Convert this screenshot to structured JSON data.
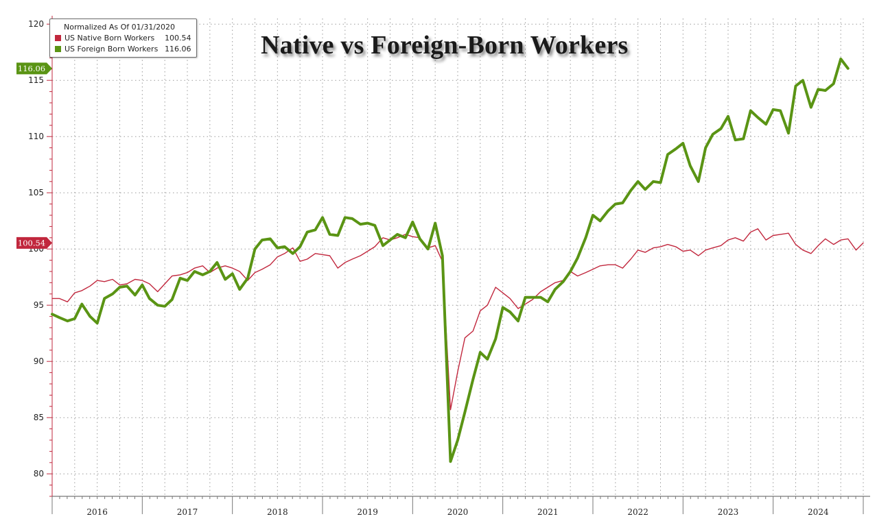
{
  "chart_data": {
    "type": "line",
    "title": "Native vs Foreign-Born Workers",
    "legend_header": "Normalized As Of 01/31/2020",
    "legend_position": "top-left",
    "ylim": [
      78,
      120.5
    ],
    "y_ticks": [
      80,
      85,
      90,
      95,
      100,
      105,
      110,
      115,
      120
    ],
    "xlim": [
      2016,
      2025
    ],
    "year_labels": [
      "2016",
      "2017",
      "2018",
      "2019",
      "2020",
      "2021",
      "2022",
      "2023",
      "2024"
    ],
    "grid": true,
    "series": [
      {
        "name": "US Native Born Workers",
        "color": "#c1273d",
        "last_value": 100.54,
        "last_label": "100.54",
        "width": 1.4,
        "points": [
          [
            2016.0,
            95.6
          ],
          [
            2016.08,
            95.6
          ],
          [
            2016.17,
            95.3
          ],
          [
            2016.25,
            96.1
          ],
          [
            2016.33,
            96.3
          ],
          [
            2016.42,
            96.7
          ],
          [
            2016.5,
            97.2
          ],
          [
            2016.58,
            97.1
          ],
          [
            2016.67,
            97.3
          ],
          [
            2016.75,
            96.8
          ],
          [
            2016.83,
            96.9
          ],
          [
            2016.92,
            97.3
          ],
          [
            2017.0,
            97.2
          ],
          [
            2017.08,
            96.9
          ],
          [
            2017.17,
            96.2
          ],
          [
            2017.25,
            96.9
          ],
          [
            2017.33,
            97.6
          ],
          [
            2017.42,
            97.7
          ],
          [
            2017.5,
            97.9
          ],
          [
            2017.58,
            98.3
          ],
          [
            2017.67,
            98.5
          ],
          [
            2017.75,
            97.9
          ],
          [
            2017.83,
            98.3
          ],
          [
            2017.92,
            98.5
          ],
          [
            2018.0,
            98.3
          ],
          [
            2018.08,
            98.0
          ],
          [
            2018.17,
            97.2
          ],
          [
            2018.25,
            97.9
          ],
          [
            2018.33,
            98.2
          ],
          [
            2018.42,
            98.6
          ],
          [
            2018.5,
            99.3
          ],
          [
            2018.58,
            99.6
          ],
          [
            2018.67,
            100.1
          ],
          [
            2018.75,
            98.9
          ],
          [
            2018.83,
            99.1
          ],
          [
            2018.92,
            99.6
          ],
          [
            2019.0,
            99.5
          ],
          [
            2019.08,
            99.4
          ],
          [
            2019.17,
            98.3
          ],
          [
            2019.25,
            98.8
          ],
          [
            2019.33,
            99.1
          ],
          [
            2019.42,
            99.4
          ],
          [
            2019.5,
            99.8
          ],
          [
            2019.58,
            100.2
          ],
          [
            2019.67,
            101.0
          ],
          [
            2019.75,
            100.8
          ],
          [
            2019.83,
            101.0
          ],
          [
            2019.92,
            101.3
          ],
          [
            2020.0,
            101.1
          ],
          [
            2020.08,
            101.0
          ],
          [
            2020.17,
            100.1
          ],
          [
            2020.25,
            100.3
          ],
          [
            2020.33,
            98.9
          ],
          [
            2020.42,
            85.7
          ],
          [
            2020.5,
            89.1
          ],
          [
            2020.58,
            92.1
          ],
          [
            2020.67,
            92.7
          ],
          [
            2020.75,
            94.5
          ],
          [
            2020.83,
            95.0
          ],
          [
            2020.92,
            96.6
          ],
          [
            2021.0,
            96.1
          ],
          [
            2021.08,
            95.6
          ],
          [
            2021.17,
            94.7
          ],
          [
            2021.25,
            95.1
          ],
          [
            2021.33,
            95.5
          ],
          [
            2021.42,
            96.2
          ],
          [
            2021.5,
            96.6
          ],
          [
            2021.58,
            97.0
          ],
          [
            2021.67,
            97.2
          ],
          [
            2021.75,
            98.0
          ],
          [
            2021.83,
            97.6
          ],
          [
            2021.92,
            97.9
          ],
          [
            2022.0,
            98.2
          ],
          [
            2022.08,
            98.5
          ],
          [
            2022.17,
            98.6
          ],
          [
            2022.25,
            98.6
          ],
          [
            2022.33,
            98.3
          ],
          [
            2022.42,
            99.1
          ],
          [
            2022.5,
            99.9
          ],
          [
            2022.58,
            99.7
          ],
          [
            2022.67,
            100.1
          ],
          [
            2022.75,
            100.2
          ],
          [
            2022.83,
            100.4
          ],
          [
            2022.92,
            100.2
          ],
          [
            2023.0,
            99.8
          ],
          [
            2023.08,
            99.9
          ],
          [
            2023.17,
            99.4
          ],
          [
            2023.25,
            99.9
          ],
          [
            2023.33,
            100.1
          ],
          [
            2023.42,
            100.3
          ],
          [
            2023.5,
            100.8
          ],
          [
            2023.58,
            101.0
          ],
          [
            2023.67,
            100.7
          ],
          [
            2023.75,
            101.5
          ],
          [
            2023.83,
            101.8
          ],
          [
            2023.92,
            100.8
          ],
          [
            2024.0,
            101.2
          ],
          [
            2024.08,
            101.3
          ],
          [
            2024.17,
            101.4
          ],
          [
            2024.25,
            100.4
          ],
          [
            2024.33,
            99.9
          ],
          [
            2024.42,
            99.6
          ],
          [
            2024.5,
            100.3
          ],
          [
            2024.58,
            100.9
          ],
          [
            2024.67,
            100.4
          ],
          [
            2024.75,
            100.8
          ],
          [
            2024.83,
            100.9
          ],
          [
            2024.92,
            99.9
          ],
          [
            2025.0,
            100.54
          ]
        ]
      },
      {
        "name": "US Foreign Born Workers",
        "color": "#5a9414",
        "last_value": 116.06,
        "last_label": "116.06",
        "width": 4.0,
        "points": [
          [
            2016.0,
            94.2
          ],
          [
            2016.08,
            93.9
          ],
          [
            2016.17,
            93.6
          ],
          [
            2016.25,
            93.8
          ],
          [
            2016.33,
            95.1
          ],
          [
            2016.42,
            94.0
          ],
          [
            2016.5,
            93.4
          ],
          [
            2016.58,
            95.6
          ],
          [
            2016.67,
            96.0
          ],
          [
            2016.75,
            96.6
          ],
          [
            2016.83,
            96.7
          ],
          [
            2016.92,
            95.9
          ],
          [
            2017.0,
            96.8
          ],
          [
            2017.08,
            95.6
          ],
          [
            2017.17,
            95.0
          ],
          [
            2017.25,
            94.9
          ],
          [
            2017.33,
            95.5
          ],
          [
            2017.42,
            97.4
          ],
          [
            2017.5,
            97.2
          ],
          [
            2017.58,
            98.0
          ],
          [
            2017.67,
            97.7
          ],
          [
            2017.75,
            98.0
          ],
          [
            2017.83,
            98.8
          ],
          [
            2017.92,
            97.3
          ],
          [
            2018.0,
            97.8
          ],
          [
            2018.08,
            96.4
          ],
          [
            2018.17,
            97.4
          ],
          [
            2018.25,
            100.0
          ],
          [
            2018.33,
            100.8
          ],
          [
            2018.42,
            100.9
          ],
          [
            2018.5,
            100.1
          ],
          [
            2018.58,
            100.2
          ],
          [
            2018.67,
            99.6
          ],
          [
            2018.75,
            100.2
          ],
          [
            2018.83,
            101.5
          ],
          [
            2018.92,
            101.7
          ],
          [
            2019.0,
            102.8
          ],
          [
            2019.08,
            101.3
          ],
          [
            2019.17,
            101.2
          ],
          [
            2019.25,
            102.8
          ],
          [
            2019.33,
            102.7
          ],
          [
            2019.42,
            102.2
          ],
          [
            2019.5,
            102.3
          ],
          [
            2019.58,
            102.1
          ],
          [
            2019.67,
            100.3
          ],
          [
            2019.75,
            100.8
          ],
          [
            2019.83,
            101.3
          ],
          [
            2019.92,
            101.0
          ],
          [
            2020.0,
            102.4
          ],
          [
            2020.08,
            100.9
          ],
          [
            2020.17,
            100.0
          ],
          [
            2020.25,
            102.3
          ],
          [
            2020.33,
            99.4
          ],
          [
            2020.42,
            81.1
          ],
          [
            2020.5,
            83.0
          ],
          [
            2020.58,
            85.5
          ],
          [
            2020.67,
            88.4
          ],
          [
            2020.75,
            90.8
          ],
          [
            2020.83,
            90.2
          ],
          [
            2020.92,
            92.0
          ],
          [
            2021.0,
            94.8
          ],
          [
            2021.08,
            94.4
          ],
          [
            2021.17,
            93.6
          ],
          [
            2021.25,
            95.7
          ],
          [
            2021.33,
            95.7
          ],
          [
            2021.42,
            95.7
          ],
          [
            2021.5,
            95.3
          ],
          [
            2021.58,
            96.4
          ],
          [
            2021.67,
            97.1
          ],
          [
            2021.75,
            98.0
          ],
          [
            2021.83,
            99.2
          ],
          [
            2021.92,
            101.0
          ],
          [
            2022.0,
            103.0
          ],
          [
            2022.08,
            102.5
          ],
          [
            2022.17,
            103.4
          ],
          [
            2022.25,
            104.0
          ],
          [
            2022.33,
            104.1
          ],
          [
            2022.42,
            105.2
          ],
          [
            2022.5,
            106.0
          ],
          [
            2022.58,
            105.3
          ],
          [
            2022.67,
            106.0
          ],
          [
            2022.75,
            105.9
          ],
          [
            2022.83,
            108.4
          ],
          [
            2022.92,
            108.9
          ],
          [
            2023.0,
            109.4
          ],
          [
            2023.08,
            107.4
          ],
          [
            2023.17,
            106.0
          ],
          [
            2023.25,
            109.0
          ],
          [
            2023.33,
            110.2
          ],
          [
            2023.42,
            110.7
          ],
          [
            2023.5,
            111.8
          ],
          [
            2023.58,
            109.7
          ],
          [
            2023.67,
            109.8
          ],
          [
            2023.75,
            112.3
          ],
          [
            2023.83,
            111.7
          ],
          [
            2023.92,
            111.1
          ],
          [
            2024.0,
            112.4
          ],
          [
            2024.08,
            112.3
          ],
          [
            2024.17,
            110.3
          ],
          [
            2024.25,
            114.5
          ],
          [
            2024.33,
            115.0
          ],
          [
            2024.42,
            112.6
          ],
          [
            2024.5,
            114.2
          ],
          [
            2024.58,
            114.1
          ],
          [
            2024.67,
            114.7
          ],
          [
            2024.75,
            116.9
          ],
          [
            2024.83,
            116.06
          ]
        ]
      }
    ]
  }
}
